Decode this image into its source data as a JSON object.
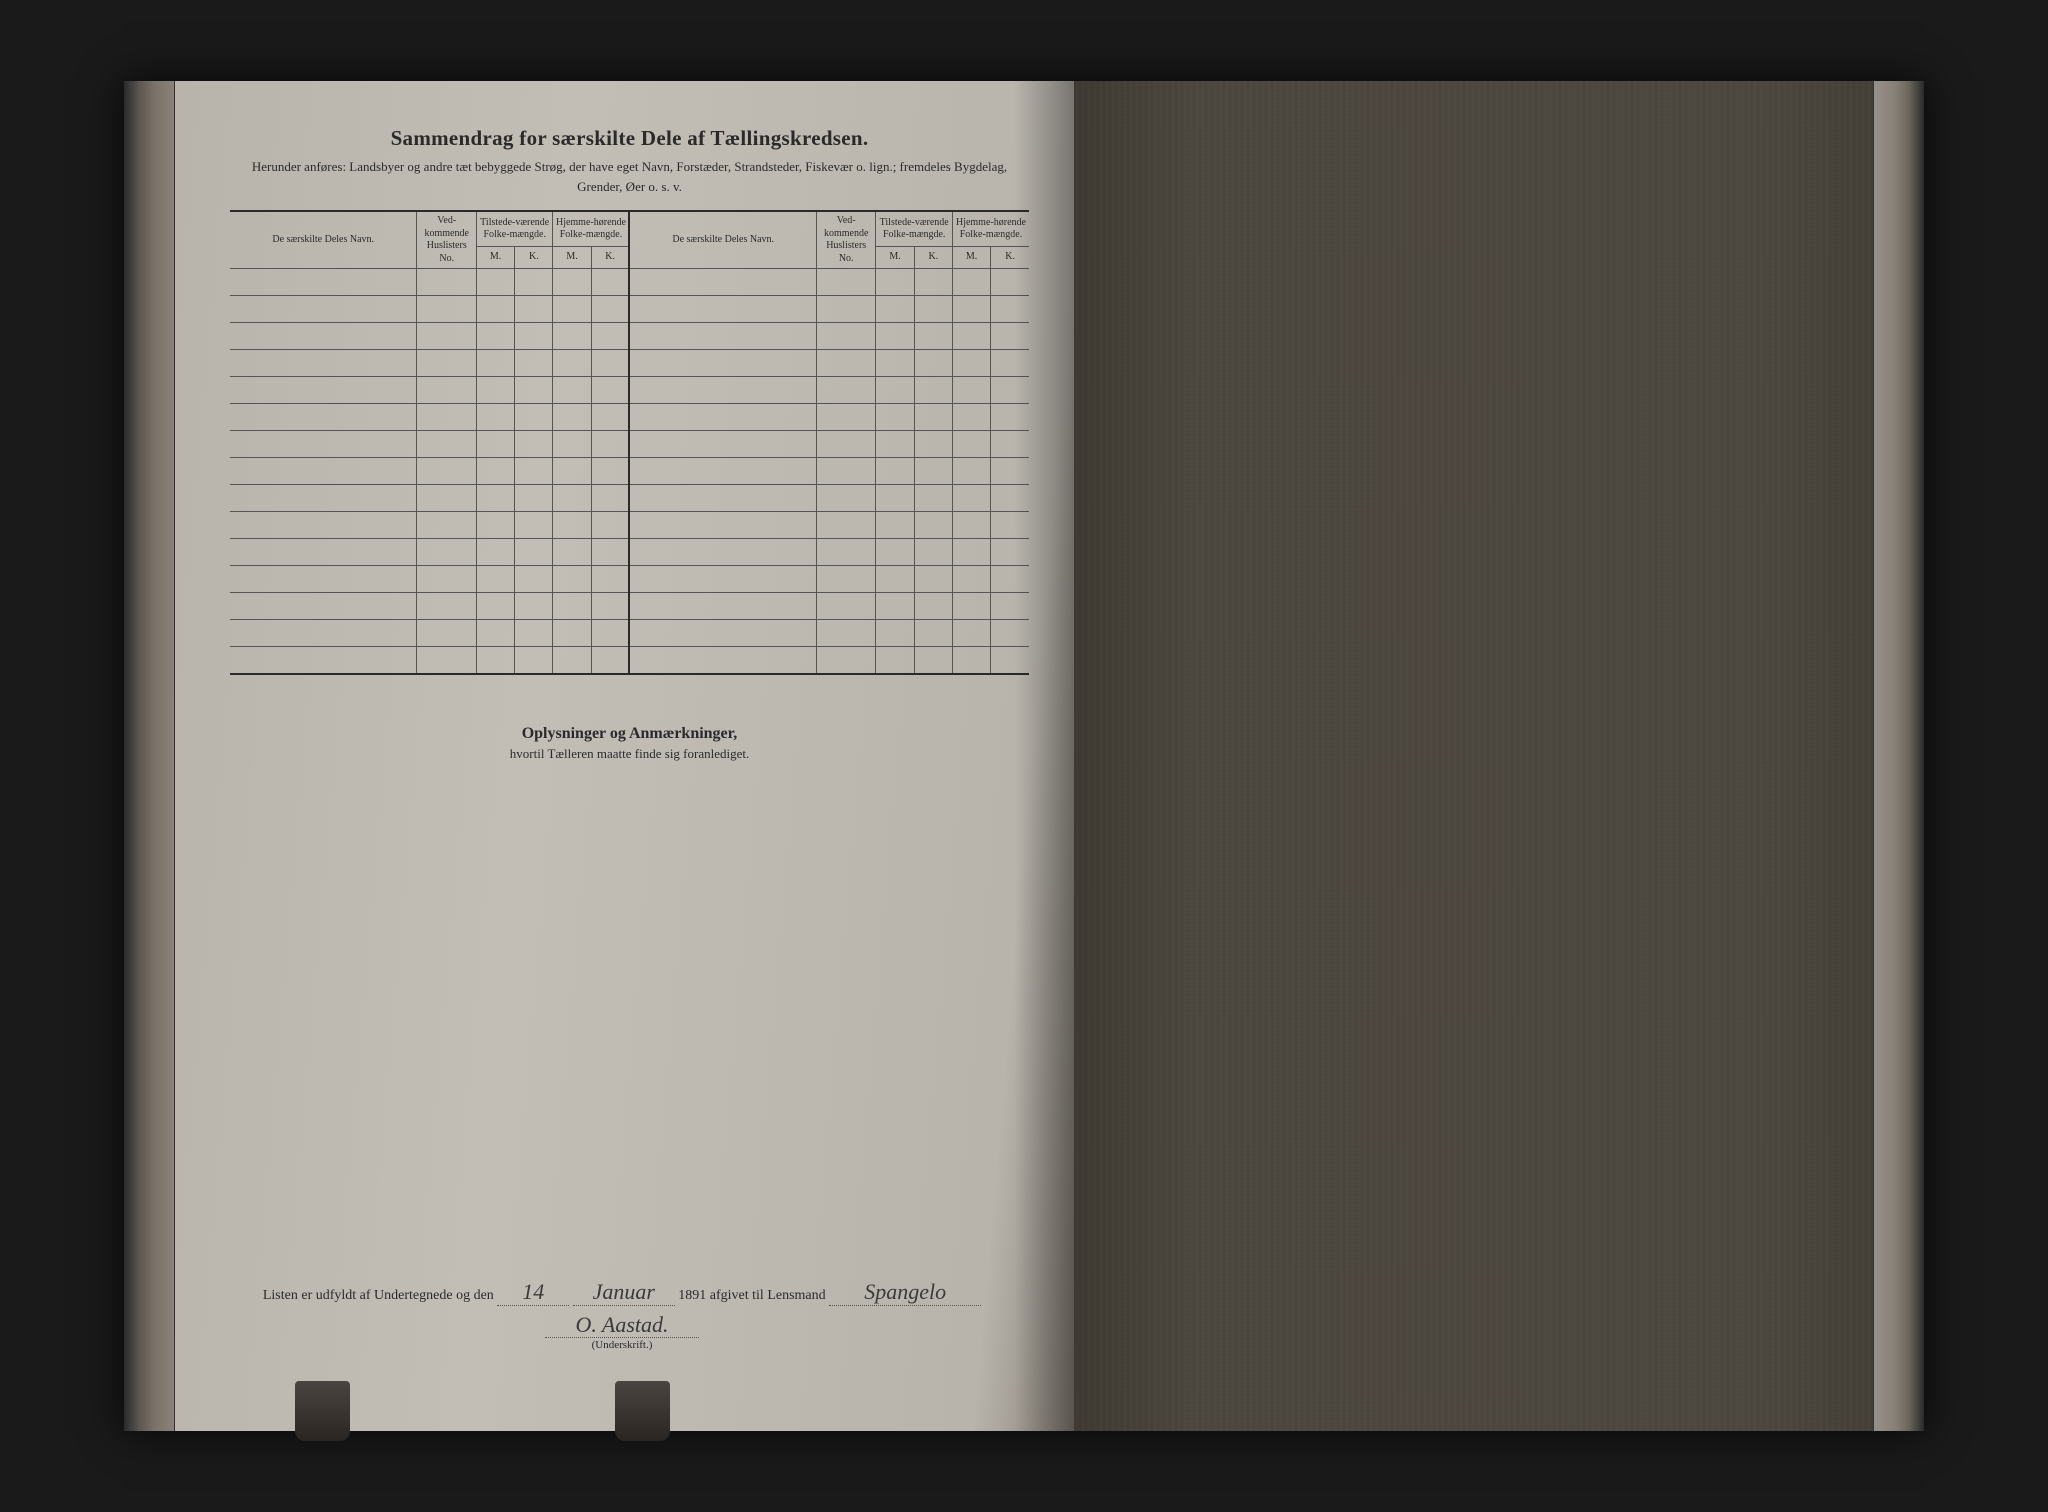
{
  "header": {
    "title": "Sammendrag for særskilte Dele af Tællingskredsen.",
    "subtitle": "Herunder anføres: Landsbyer og andre tæt bebyggede Strøg, der have eget Navn, Forstæder, Strandsteder, Fiskevær o. lign.; fremdeles Bygdelag, Grender, Øer o. s. v."
  },
  "table": {
    "columns": {
      "name": "De særskilte Deles Navn.",
      "ved": "Ved-kommende Huslisters No.",
      "tilstede": "Tilstede-værende Folke-mængde.",
      "hjemme": "Hjemme-hørende Folke-mængde.",
      "m": "M.",
      "k": "K."
    },
    "row_count": 15
  },
  "notes": {
    "title": "Oplysninger og Anmærkninger,",
    "sub": "hvortil Tælleren maatte finde sig foranlediget."
  },
  "signature": {
    "prefix": "Listen er udfyldt af Undertegnede og den",
    "day": "14",
    "month": "Januar",
    "year": "1891",
    "mid": "afgivet til Lensmand",
    "lensmand": "Spangelo",
    "signature": "O. Aastad.",
    "caption": "(Underskrift.)"
  },
  "style": {
    "page_bg": "#c0bcb4",
    "ink": "#2a2a2a",
    "rule": "#555"
  }
}
